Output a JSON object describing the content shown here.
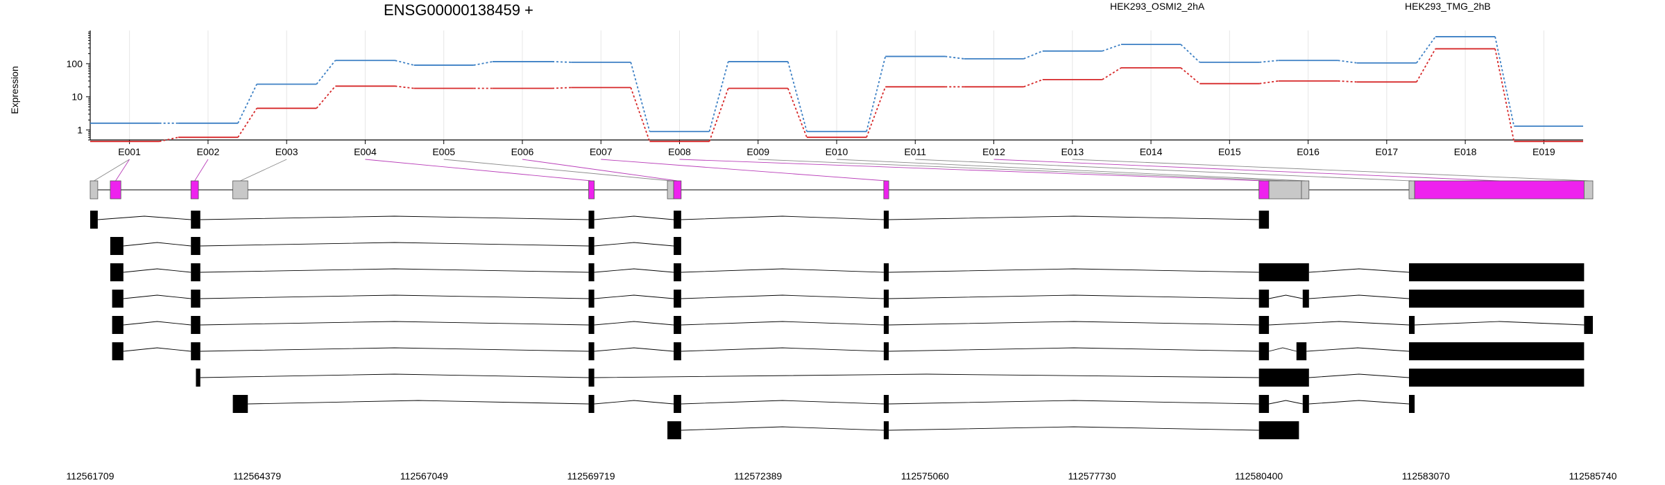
{
  "chart_data": {
    "type": "line",
    "title": "ENSG00000138459 +",
    "ylabel": "Expression",
    "yscale": "log",
    "ylim": [
      0.5,
      1000
    ],
    "ytick_labels": [
      "1",
      "10",
      "100"
    ],
    "ytick_values": [
      1,
      10,
      100
    ],
    "categories": [
      "E001",
      "E002",
      "E003",
      "E004",
      "E005",
      "E006",
      "E007",
      "E008",
      "E009",
      "E010",
      "E011",
      "E012",
      "E013",
      "E014",
      "E015",
      "E016",
      "E017",
      "E018",
      "E019"
    ],
    "series": [
      {
        "name": "HEK293_OSMI2_2hA",
        "color": "#d62728",
        "values": [
          0.45,
          0.6,
          4.5,
          21,
          18,
          18,
          19,
          0.45,
          18,
          0.6,
          20,
          20,
          33,
          75,
          25,
          30,
          28,
          280,
          0.45
        ]
      },
      {
        "name": "HEK293_TMG_2hB",
        "color": "#3b7fc4",
        "values": [
          1.6,
          1.6,
          24,
          125,
          90,
          115,
          110,
          0.9,
          115,
          0.9,
          165,
          140,
          240,
          380,
          110,
          125,
          105,
          650,
          1.3
        ]
      }
    ],
    "genomic_axis": {
      "ticks": [
        "112561709",
        "112564379",
        "112567049",
        "112569719",
        "112572389",
        "112575060",
        "112577730",
        "112580400",
        "112583070",
        "112585740"
      ],
      "start": 112561709,
      "end": 112585740
    },
    "exon_colors": {
      "tested": "#ee22ee",
      "untested": "#c8c8c8"
    },
    "exons": [
      {
        "name": "E001",
        "start": 112561709,
        "end": 112561830,
        "tested": false
      },
      {
        "name": "E001",
        "start": 112562030,
        "end": 112562200,
        "tested": true
      },
      {
        "name": "E002",
        "start": 112563320,
        "end": 112563440,
        "tested": true
      },
      {
        "name": "E003",
        "start": 112563990,
        "end": 112564230,
        "tested": false
      },
      {
        "name": "E004",
        "start": 112569680,
        "end": 112569770,
        "tested": true
      },
      {
        "name": "E005",
        "start": 112570940,
        "end": 112571040,
        "tested": false
      },
      {
        "name": "E006",
        "start": 112571040,
        "end": 112571160,
        "tested": true
      },
      {
        "name": "E007",
        "start": 112574400,
        "end": 112574480,
        "tested": true
      },
      {
        "name": "E008",
        "start": 112580400,
        "end": 112580560,
        "tested": true
      },
      {
        "name": "E009",
        "start": 112580560,
        "end": 112581080,
        "tested": false
      },
      {
        "name": "E010",
        "start": 112581080,
        "end": 112581200,
        "tested": false
      },
      {
        "name": "E011",
        "start": 112582800,
        "end": 112582890,
        "tested": false
      },
      {
        "name": "E012",
        "start": 112582890,
        "end": 112585600,
        "tested": true
      },
      {
        "name": "E013",
        "start": 112585600,
        "end": 112585740,
        "tested": false
      }
    ],
    "transcripts": [
      [
        [
          112561709,
          112561830
        ],
        [
          112563320,
          112563470
        ],
        [
          112569680,
          112569770
        ],
        [
          112571040,
          112571160
        ],
        [
          112574400,
          112574480
        ],
        [
          112580400,
          112580560
        ]
      ],
      [
        [
          112562030,
          112562240
        ],
        [
          112563320,
          112563470
        ],
        [
          112569680,
          112569770
        ],
        [
          112571040,
          112571160
        ]
      ],
      [
        [
          112562030,
          112562240
        ],
        [
          112563320,
          112563470
        ],
        [
          112569680,
          112569770
        ],
        [
          112571040,
          112571160
        ],
        [
          112574400,
          112574480
        ],
        [
          112580400,
          112581200
        ],
        [
          112582800,
          112585600
        ]
      ],
      [
        [
          112562060,
          112562240
        ],
        [
          112563320,
          112563470
        ],
        [
          112569680,
          112569770
        ],
        [
          112571040,
          112571160
        ],
        [
          112574400,
          112574480
        ],
        [
          112580400,
          112580560
        ],
        [
          112581100,
          112581200
        ],
        [
          112582800,
          112585600
        ]
      ],
      [
        [
          112562060,
          112562240
        ],
        [
          112563320,
          112563470
        ],
        [
          112569680,
          112569770
        ],
        [
          112571040,
          112571160
        ],
        [
          112574400,
          112574480
        ],
        [
          112580400,
          112580560
        ],
        [
          112582800,
          112582890
        ],
        [
          112585600,
          112585740
        ]
      ],
      [
        [
          112562060,
          112562240
        ],
        [
          112563320,
          112563470
        ],
        [
          112569680,
          112569770
        ],
        [
          112571040,
          112571160
        ],
        [
          112574400,
          112574480
        ],
        [
          112580400,
          112580560
        ],
        [
          112581000,
          112581160
        ],
        [
          112582800,
          112585600
        ]
      ],
      [
        [
          112563400,
          112563470
        ],
        [
          112569680,
          112569770
        ],
        [
          112580400,
          112581200
        ],
        [
          112582800,
          112585600
        ]
      ],
      [
        [
          112563990,
          112564230
        ],
        [
          112569680,
          112569770
        ],
        [
          112571040,
          112571160
        ],
        [
          112574400,
          112574480
        ],
        [
          112580400,
          112580560
        ],
        [
          112581100,
          112581200
        ],
        [
          112582800,
          112582890
        ]
      ],
      [
        [
          112570940,
          112571160
        ],
        [
          112574400,
          112574480
        ],
        [
          112580400,
          112581040
        ]
      ]
    ],
    "grid": true,
    "legend": "top-right"
  }
}
